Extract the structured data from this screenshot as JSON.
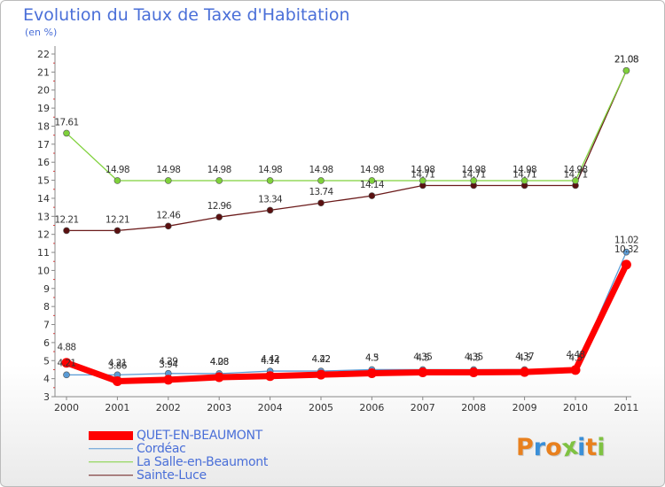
{
  "chart_data": {
    "type": "line",
    "title": "Evolution du Taux de Taxe d'Habitation",
    "subtitle": "(en %)",
    "xlabel": "",
    "ylabel": "",
    "ylim": [
      3,
      22
    ],
    "grid": false,
    "categories": [
      "2000",
      "2001",
      "2002",
      "2003",
      "2004",
      "2005",
      "2006",
      "2007",
      "2008",
      "2009",
      "2010",
      "2011"
    ],
    "series": [
      {
        "name": "QUET-EN-BEAUMONT",
        "color": "#ff0000",
        "values": [
          4.88,
          3.86,
          3.94,
          4.08,
          4.14,
          4.22,
          4.3,
          4.35,
          4.35,
          4.37,
          4.48,
          10.32
        ],
        "labels": [
          "4.88",
          "3.86",
          "3.94",
          "4.08",
          "4.14",
          "4.22",
          "4.3",
          "4.35",
          "4.35",
          "4.37",
          "4.48",
          "10.32"
        ]
      },
      {
        "name": "Cordéac",
        "color": "#5b9bd5",
        "values": [
          4.21,
          4.21,
          4.29,
          4.28,
          4.42,
          4.42,
          4.5,
          4.5,
          4.5,
          4.5,
          4.5,
          11.02
        ],
        "labels": [
          "4.21",
          "4.21",
          "4.29",
          "4.28",
          "4.42",
          "4.42",
          "4.5",
          "4.5",
          "4.5",
          "4.5",
          "4.5",
          "11.02"
        ]
      },
      {
        "name": "La Salle-en-Beaumont",
        "color": "#7fd13b",
        "values": [
          17.61,
          14.98,
          14.98,
          14.98,
          14.98,
          14.98,
          14.98,
          14.98,
          14.98,
          14.98,
          14.98,
          21.08
        ],
        "labels": [
          "17.61",
          "14.98",
          "14.98",
          "14.98",
          "14.98",
          "14.98",
          "14.98",
          "14.98",
          "14.98",
          "14.98",
          "14.98",
          "21.08"
        ]
      },
      {
        "name": "Sainte-Luce",
        "color": "#6b1a1a",
        "values": [
          12.21,
          12.21,
          12.46,
          12.96,
          13.34,
          13.74,
          14.14,
          14.71,
          14.71,
          14.71,
          14.71,
          21.08
        ],
        "labels": [
          "12.21",
          "12.21",
          "12.46",
          "12.96",
          "13.34",
          "13.74",
          "14.14",
          "14.71",
          "14.71",
          "14.71",
          "14.71",
          "21.08"
        ]
      }
    ]
  },
  "logo": {
    "text": "Proxiti",
    "colors": [
      "#e8801e",
      "#3a8fd8",
      "#e8801e",
      "#7fc242",
      "#3a8fd8",
      "#e8801e",
      "#7fc242"
    ]
  }
}
